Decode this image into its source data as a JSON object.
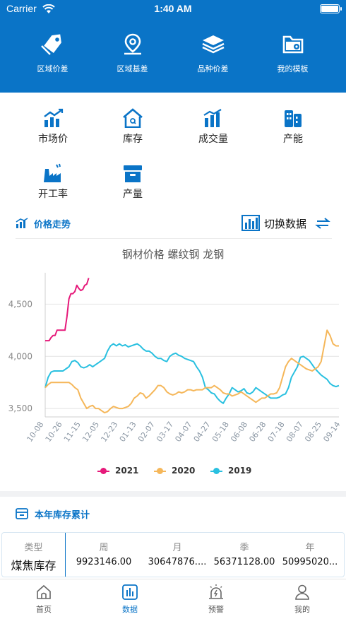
{
  "status": {
    "carrier": "Carrier",
    "time": "1:40 AM"
  },
  "top_nav": [
    {
      "label": "区域价差",
      "icon": "tag-icon"
    },
    {
      "label": "区域基差",
      "icon": "map-pin-icon"
    },
    {
      "label": "品种价差",
      "icon": "layers-icon"
    },
    {
      "label": "我的模板",
      "icon": "folder-settings-icon"
    }
  ],
  "grid": [
    {
      "label": "市场价",
      "icon": "bar-trend-icon"
    },
    {
      "label": "库存",
      "icon": "warehouse-icon"
    },
    {
      "label": "成交量",
      "icon": "volume-chart-icon"
    },
    {
      "label": "产能",
      "icon": "building-icon"
    },
    {
      "label": "开工率",
      "icon": "factory-icon"
    },
    {
      "label": "产量",
      "icon": "box-icon"
    }
  ],
  "trend": {
    "title": "价格走势",
    "switch_label": "切换数据"
  },
  "colors": {
    "brand": "#0a74c7",
    "s2021": "#e6197a",
    "s2020": "#f5b75a",
    "s2019": "#29c0e0"
  },
  "chart_data": {
    "type": "line",
    "title": "钢材价格 螺纹钢 龙钢",
    "xlabel": "",
    "ylabel": "",
    "ylim": [
      3420,
      4800
    ],
    "yticks": [
      "3,500",
      "4,000",
      "4,500"
    ],
    "ytick_values": [
      3500,
      4000,
      4500
    ],
    "x_ticks": [
      "10-08",
      "10-26",
      "11-15",
      "12-05",
      "12-23",
      "01-13",
      "02-07",
      "03-17",
      "04-07",
      "04-27",
      "05-18",
      "06-08",
      "06-28",
      "07-18",
      "08-07",
      "08-25",
      "09-14"
    ],
    "x_count": 100,
    "legend_position": "bottom",
    "series": [
      {
        "name": "2021",
        "color": "#e6197a",
        "x": [
          0,
          2,
          4,
          6,
          8,
          10,
          12,
          14,
          16,
          18,
          20,
          22,
          24,
          26,
          28,
          30,
          32,
          34,
          36,
          38,
          40,
          42,
          44
        ],
        "values": [
          4150,
          4150,
          4150,
          4180,
          4200,
          4200,
          4250,
          4250,
          4250,
          4250,
          4250,
          4380,
          4550,
          4600,
          4600,
          4620,
          4680,
          4650,
          4630,
          4640,
          4680,
          4690,
          4750
        ]
      },
      {
        "name": "2020",
        "color": "#f5b75a",
        "x": [
          0,
          3,
          6,
          9,
          12,
          15,
          18,
          21,
          24,
          27,
          30,
          33,
          36,
          39,
          42,
          45,
          48,
          51,
          54,
          57,
          60,
          63,
          66,
          69,
          72,
          75,
          78,
          81,
          84,
          87,
          90,
          93,
          96,
          99,
          102,
          105,
          108,
          111,
          114,
          117,
          120,
          123,
          126,
          129,
          132,
          135,
          138,
          141,
          144,
          147,
          150,
          153,
          156,
          159,
          162,
          165,
          168,
          171,
          174,
          177,
          180,
          183,
          186,
          189,
          192,
          195,
          198,
          201,
          204,
          207,
          210,
          213,
          216,
          219,
          222,
          225,
          228,
          231,
          234,
          237,
          240,
          243,
          246,
          249,
          252,
          255,
          258,
          261,
          264,
          267,
          270,
          273,
          276,
          279,
          282,
          285,
          288,
          291,
          294,
          297
        ],
        "values": [
          3700,
          3730,
          3750,
          3750,
          3750,
          3750,
          3750,
          3750,
          3750,
          3730,
          3700,
          3680,
          3600,
          3550,
          3500,
          3520,
          3530,
          3500,
          3500,
          3480,
          3460,
          3470,
          3500,
          3520,
          3510,
          3500,
          3500,
          3510,
          3520,
          3550,
          3600,
          3620,
          3650,
          3640,
          3600,
          3620,
          3650,
          3680,
          3720,
          3720,
          3700,
          3660,
          3640,
          3630,
          3640,
          3660,
          3650,
          3660,
          3680,
          3680,
          3670,
          3680,
          3680,
          3680,
          3700,
          3700,
          3700,
          3720,
          3700,
          3680,
          3650,
          3640,
          3640,
          3620,
          3630,
          3640,
          3660,
          3640,
          3620,
          3600,
          3580,
          3560,
          3580,
          3600,
          3600,
          3620,
          3640,
          3640,
          3650,
          3700,
          3800,
          3900,
          3950,
          3980,
          3960,
          3940,
          3920,
          3900,
          3880,
          3870,
          3860,
          3880,
          3900,
          3950,
          4100,
          4250,
          4200,
          4120,
          4100,
          4100
        ]
      },
      {
        "name": "2019",
        "color": "#29c0e0",
        "x": [
          0,
          3,
          6,
          9,
          12,
          15,
          18,
          21,
          24,
          27,
          30,
          33,
          36,
          39,
          42,
          45,
          48,
          51,
          54,
          57,
          60,
          63,
          66,
          69,
          72,
          75,
          78,
          81,
          84,
          87,
          90,
          93,
          96,
          99,
          102,
          105,
          108,
          111,
          114,
          117,
          120,
          123,
          126,
          129,
          132,
          135,
          138,
          141,
          144,
          147,
          150,
          153,
          156,
          159,
          162,
          165,
          168,
          171,
          174,
          177,
          180,
          183,
          186,
          189,
          192,
          195,
          198,
          201,
          204,
          207,
          210,
          213,
          216,
          219,
          222,
          225,
          228,
          231,
          234,
          237,
          240,
          243,
          246,
          249,
          252,
          255,
          258,
          261,
          264,
          267,
          270,
          273,
          276,
          279,
          282,
          285,
          288,
          291,
          294,
          297
        ],
        "values": [
          3700,
          3800,
          3850,
          3860,
          3860,
          3860,
          3860,
          3880,
          3900,
          3950,
          3960,
          3940,
          3900,
          3890,
          3900,
          3920,
          3900,
          3920,
          3940,
          3960,
          3980,
          4050,
          4100,
          4120,
          4100,
          4120,
          4100,
          4110,
          4090,
          4100,
          4110,
          4120,
          4100,
          4070,
          4050,
          4050,
          4030,
          4000,
          3980,
          3980,
          3960,
          3950,
          4000,
          4020,
          4030,
          4010,
          4000,
          3980,
          3970,
          3960,
          3950,
          3900,
          3860,
          3800,
          3700,
          3680,
          3650,
          3640,
          3600,
          3570,
          3550,
          3600,
          3640,
          3700,
          3680,
          3660,
          3670,
          3690,
          3650,
          3640,
          3660,
          3700,
          3680,
          3660,
          3640,
          3620,
          3600,
          3600,
          3600,
          3610,
          3630,
          3640,
          3700,
          3800,
          3850,
          3900,
          3990,
          4000,
          3980,
          3960,
          3920,
          3880,
          3850,
          3820,
          3800,
          3780,
          3740,
          3720,
          3710,
          3720
        ]
      }
    ]
  },
  "inventory": {
    "title": "本年库存累计",
    "headers": [
      "类型",
      "周",
      "月",
      "季",
      "年"
    ],
    "values": [
      "煤焦库存",
      "9923146.00",
      "30647876....",
      "56371128.00",
      "50995020..."
    ]
  },
  "tabs": [
    {
      "label": "首页",
      "icon": "home-icon"
    },
    {
      "label": "数据",
      "icon": "data-icon"
    },
    {
      "label": "预警",
      "icon": "alarm-icon"
    },
    {
      "label": "我的",
      "icon": "user-icon"
    }
  ]
}
